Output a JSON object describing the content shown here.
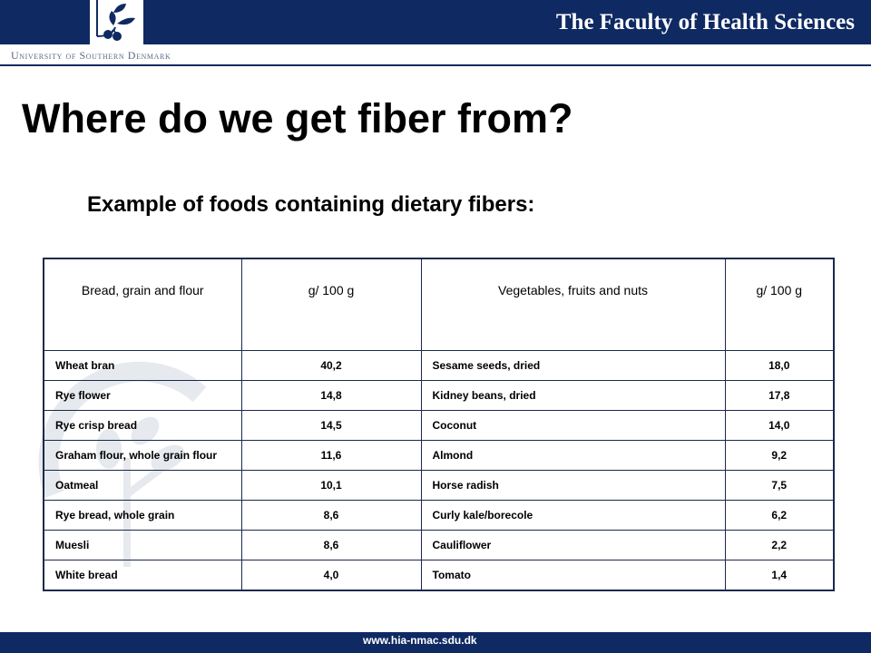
{
  "header": {
    "faculty": "The Faculty of Health Sciences",
    "university": "University of Southern Denmark",
    "logo_icon": "leaf-tree-logo"
  },
  "slide": {
    "title": "Where do we get fiber from?",
    "subtitle": "Example of foods containing dietary fibers:"
  },
  "table": {
    "headers": [
      "Bread, grain and flour",
      "g/ 100 g",
      "Vegetables, fruits and nuts",
      "g/ 100 g"
    ],
    "rows": [
      [
        "Wheat bran",
        "40,2",
        "Sesame seeds, dried",
        "18,0"
      ],
      [
        "Rye flower",
        "14,8",
        "Kidney beans, dried",
        "17,8"
      ],
      [
        "Rye crisp bread",
        "14,5",
        "Coconut",
        "14,0"
      ],
      [
        "Graham flour, whole grain flour",
        "11,6",
        "Almond",
        "9,2"
      ],
      [
        "Oatmeal",
        "10,1",
        "Horse radish",
        "7,5"
      ],
      [
        "Rye bread, whole grain",
        "8,6",
        "Curly kale/borecole",
        "6,2"
      ],
      [
        "Muesli",
        "8,6",
        "Cauliflower",
        "2,2"
      ],
      [
        "White bread",
        "4,0",
        "Tomato",
        "1,4"
      ]
    ]
  },
  "footer": {
    "url": "www.hia-nmac.sdu.dk"
  },
  "colors": {
    "brand_navy": "#0f2a62",
    "watermark": "#e6e9ee"
  }
}
